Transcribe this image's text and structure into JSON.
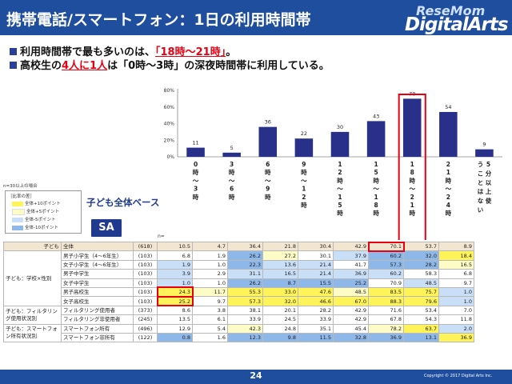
{
  "header": {
    "title": "携帯電話/スマートフォン：1日の利用時間帯",
    "logo_small": "ReseMom",
    "logo_main": "DigitalArts"
  },
  "bullets": [
    {
      "pre": "利用時間帯で最も多いのは、",
      "em": "「18時～21時」",
      "post": "。"
    },
    {
      "pre": "高校生の",
      "em": "4人に1人",
      "post": "は「0時～3時」の深夜時間帯に利用している。"
    }
  ],
  "legend": {
    "note": "n=30以上の場合",
    "title": "［比率の差］",
    "items": [
      {
        "label": "全体+10ポイント",
        "color": "#fff35a"
      },
      {
        "label": "全体+5ポイント",
        "color": "#fdfbc6"
      },
      {
        "label": "全体-5ポイント",
        "color": "#c9def7"
      },
      {
        "label": "全体-10ポイント",
        "color": "#8fb8ea"
      }
    ]
  },
  "base_label": "子ども全体ベース",
  "sa_label": "SA",
  "n_label": "n=",
  "chart_data": {
    "type": "bar",
    "categories": [
      "0時～3時",
      "3時～6時",
      "6時～9時",
      "9時～12時",
      "12時～15時",
      "15時～18時",
      "18時～21時",
      "21時～24時",
      "5分以上使うことはない"
    ],
    "category_labels": [
      "0\n時\n～\n3\n時",
      "3\n時\n～\n6\n時",
      "6\n時\n～\n9\n時",
      "9\n時\n～\n1\n2\n時",
      "1\n2\n時\n～\n1\n5\n時",
      "1\n5\n時\n～\n1\n8\n時",
      "1\n8\n時\n～\n2\n1\n時",
      "2\n1\n時\n～\n2\n4\n時",
      "5分以上使うことはない"
    ],
    "values": [
      11,
      5,
      36,
      22,
      30,
      43,
      70,
      54,
      9
    ],
    "yticks": [
      "0%",
      "20%",
      "40%",
      "60%",
      "80%"
    ],
    "ylim": [
      0,
      80
    ],
    "bar_color": "#28308a",
    "highlight_index": 6,
    "highlight_color": "#e60012"
  },
  "table": {
    "total": {
      "group": "子ども",
      "sub": "全体",
      "n": "(618)",
      "values": [
        "10.5",
        "4.7",
        "36.4",
        "21.8",
        "30.4",
        "42.9",
        "70.1",
        "53.7",
        "8.9"
      ],
      "shade": [
        "",
        "",
        "",
        "",
        "",
        "",
        "",
        "",
        ""
      ]
    },
    "groups": [
      {
        "label": "子ども：学校×性別",
        "rows": [
          {
            "sub": "男子小学生（4～6年生）",
            "n": "(103)",
            "values": [
              "6.8",
              "1.9",
              "26.2",
              "27.2",
              "30.1",
              "37.9",
              "60.2",
              "32.0",
              "18.4"
            ],
            "shade": [
              "",
              "",
              "b",
              "ly",
              "",
              "lb",
              "b",
              "b",
              "y"
            ]
          },
          {
            "sub": "女子小学生（4～6年生）",
            "n": "(103)",
            "values": [
              "1.9",
              "1.0",
              "22.3",
              "13.6",
              "21.4",
              "41.7",
              "57.3",
              "28.2",
              "16.5"
            ],
            "shade": [
              "lb",
              "",
              "b",
              "lb",
              "lb",
              "",
              "b",
              "b",
              "ly"
            ]
          },
          {
            "sub": "男子中学生",
            "n": "(103)",
            "values": [
              "3.9",
              "2.9",
              "31.1",
              "16.5",
              "21.4",
              "36.9",
              "60.2",
              "58.3",
              "6.8"
            ],
            "shade": [
              "lb",
              "",
              "lb",
              "lb",
              "lb",
              "lb",
              "lb",
              "",
              ""
            ]
          },
          {
            "sub": "女子中学生",
            "n": "(103)",
            "values": [
              "1.0",
              "1.0",
              "26.2",
              "8.7",
              "15.5",
              "25.2",
              "70.9",
              "48.5",
              "9.7"
            ],
            "shade": [
              "lb",
              "",
              "b",
              "b",
              "b",
              "b",
              "",
              "lb",
              ""
            ]
          },
          {
            "sub": "男子高校生",
            "n": "(103)",
            "values": [
              "24.3",
              "11.7",
              "55.3",
              "33.0",
              "47.6",
              "48.5",
              "83.5",
              "75.7",
              "1.0"
            ],
            "shade": [
              "y",
              "ly",
              "y",
              "y",
              "y",
              "ly",
              "y",
              "y",
              "lb"
            ]
          },
          {
            "sub": "女子高校生",
            "n": "(103)",
            "values": [
              "25.2",
              "9.7",
              "57.3",
              "32.0",
              "46.6",
              "67.0",
              "88.3",
              "79.6",
              "1.0"
            ],
            "shade": [
              "y",
              "",
              "y",
              "y",
              "y",
              "y",
              "y",
              "y",
              "lb"
            ]
          }
        ]
      },
      {
        "label": "子ども：フィルタリング使用状況別",
        "rows": [
          {
            "sub": "フィルタリング使用者",
            "n": "(373)",
            "values": [
              "8.6",
              "3.8",
              "38.1",
              "20.1",
              "28.2",
              "42.9",
              "71.6",
              "53.4",
              "7.0"
            ],
            "shade": [
              "",
              "",
              "",
              "",
              "",
              "",
              "",
              "",
              ""
            ]
          },
          {
            "sub": "フィルタリング非使用者",
            "n": "(245)",
            "values": [
              "13.5",
              "6.1",
              "33.9",
              "24.5",
              "33.9",
              "42.9",
              "67.8",
              "54.3",
              "11.8"
            ],
            "shade": [
              "",
              "",
              "",
              "",
              "",
              "",
              "",
              "",
              ""
            ]
          }
        ]
      },
      {
        "label": "子ども：スマートフォン所有状況別",
        "rows": [
          {
            "sub": "スマートフォン所有",
            "n": "(496)",
            "values": [
              "12.9",
              "5.4",
              "42.3",
              "24.8",
              "35.1",
              "45.4",
              "78.2",
              "63.7",
              "2.0"
            ],
            "shade": [
              "",
              "",
              "ly",
              "",
              "",
              "",
              "ly",
              "y",
              "lb"
            ]
          },
          {
            "sub": "スマートフォン非所有",
            "n": "(122)",
            "values": [
              "0.8",
              "1.6",
              "12.3",
              "9.8",
              "11.5",
              "32.8",
              "36.9",
              "13.1",
              "36.9"
            ],
            "shade": [
              "b",
              "",
              "b",
              "b",
              "b",
              "b",
              "b",
              "b",
              "y"
            ]
          }
        ]
      }
    ]
  },
  "footer": {
    "page": "24",
    "copyright": "Copyright © 2017 Digital Arts Inc."
  }
}
